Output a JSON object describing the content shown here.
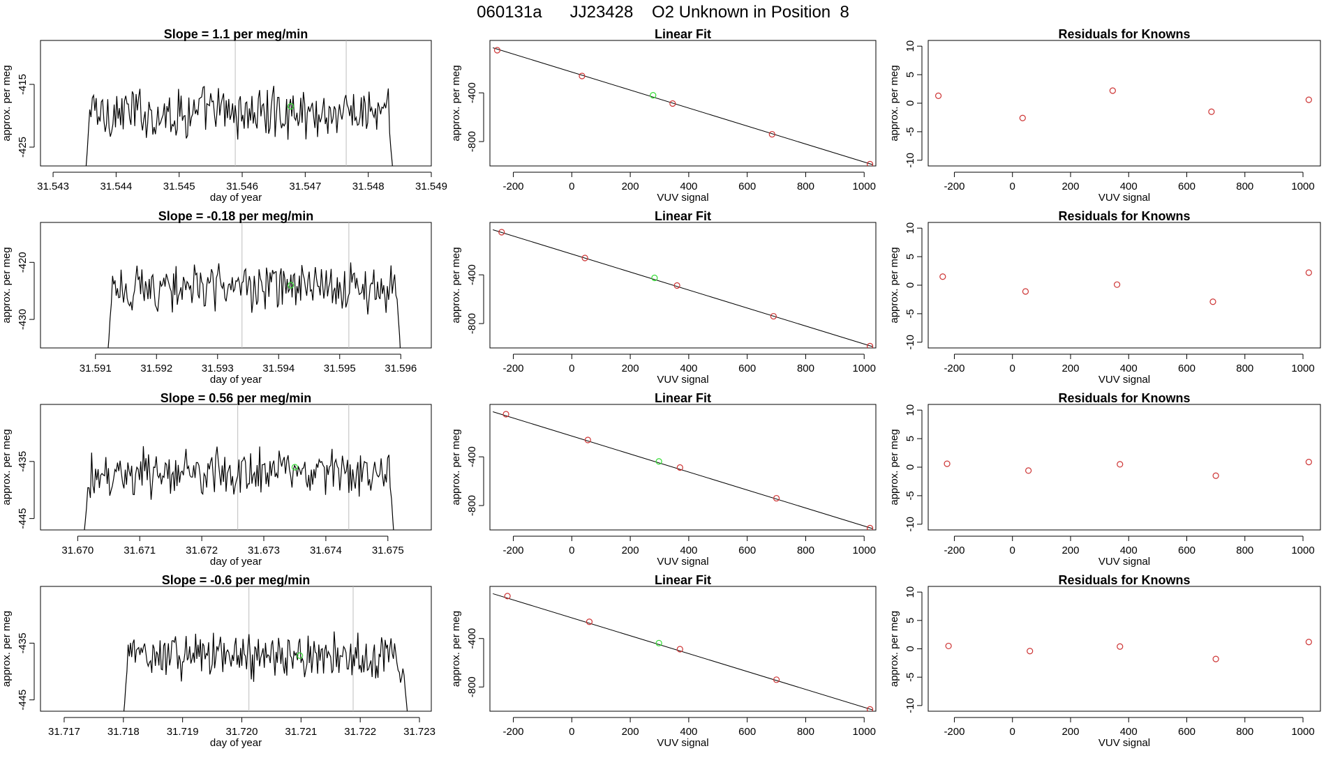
{
  "page": {
    "title": "060131a      JJ23428    O2 Unknown in Position  8"
  },
  "colors": {
    "line": "#000000",
    "known_point": "#cd3333",
    "unknown_point": "#33dd33",
    "marker_line": "#bdbdbd",
    "frame": "#000000"
  },
  "chart_data": [
    {
      "type": "line",
      "row": 1,
      "title": "Slope =  1.1  per meg/min",
      "xlabel": "day of year",
      "ylabel": "approx. per meg",
      "xlim": [
        31.5428,
        31.549
      ],
      "ylim": [
        -428,
        -408
      ],
      "xticks": [
        "31.543",
        "31.544",
        "31.545",
        "31.546",
        "31.547",
        "31.548",
        "31.549"
      ],
      "xtick_values": [
        31.543,
        31.544,
        31.545,
        31.546,
        31.547,
        31.548,
        31.549
      ],
      "yticks": [
        "-415",
        "-425"
      ],
      "ytick_values": [
        -415,
        -425
      ],
      "x_start": 31.5435,
      "x_end": 31.5484,
      "vlines": [
        31.54589,
        31.54765
      ],
      "base_level": -419.5,
      "amplitude": 3.2,
      "edge_low": -431,
      "unknown_point": {
        "x": 31.54677,
        "y": -418.5
      }
    },
    {
      "type": "scatter",
      "row": 1,
      "title": "Linear Fit",
      "xlabel": "VUV signal",
      "ylabel": "approx. per meg",
      "xlim": [
        -280,
        1040
      ],
      "ylim": [
        -1000,
        30
      ],
      "xticks": [
        "-200",
        "0",
        "200",
        "400",
        "600",
        "800",
        "1000"
      ],
      "xtick_values": [
        -200,
        0,
        200,
        400,
        600,
        800,
        1000
      ],
      "yticks": [
        "-400",
        "-800"
      ],
      "ytick_values": [
        -400,
        -800
      ],
      "fit_line": {
        "x": [
          -270,
          1030
        ],
        "y": [
          -30,
          -990
        ]
      },
      "knowns": {
        "x": [
          -255,
          35,
          345,
          685,
          1020
        ],
        "y": [
          -50,
          -262,
          -488,
          -740,
          -985
        ]
      },
      "unknown": {
        "x": 278,
        "y": -420
      }
    },
    {
      "type": "scatter",
      "row": 1,
      "title": "Residuals for Knowns",
      "xlabel": "VUV signal",
      "ylabel": "approx. per meg",
      "xlim": [
        -290,
        1060
      ],
      "ylim": [
        -11,
        11
      ],
      "xticks": [
        "-200",
        "0",
        "200",
        "400",
        "600",
        "800",
        "1000"
      ],
      "xtick_values": [
        -200,
        0,
        200,
        400,
        600,
        800,
        1000
      ],
      "yticks": [
        "10",
        "5",
        "0",
        "-5",
        "-10"
      ],
      "ytick_values": [
        10,
        5,
        0,
        -5,
        -10
      ],
      "x": [
        -255,
        35,
        345,
        685,
        1020
      ],
      "y": [
        1.3,
        -2.6,
        2.2,
        -1.5,
        0.6
      ]
    },
    {
      "type": "line",
      "row": 2,
      "title": "Slope =  -0.18  per meg/min",
      "xlabel": "day of year",
      "ylabel": "approx. per meg",
      "xlim": [
        31.5901,
        31.5965
      ],
      "ylim": [
        -435,
        -413
      ],
      "xticks": [
        "31.591",
        "31.592",
        "31.593",
        "31.594",
        "31.595",
        "31.596"
      ],
      "xtick_values": [
        31.591,
        31.592,
        31.593,
        31.594,
        31.595,
        31.596
      ],
      "yticks": [
        "-420",
        "-430"
      ],
      "ytick_values": [
        -420,
        -430
      ],
      "x_start": 31.5912,
      "x_end": 31.596,
      "vlines": [
        31.5934,
        31.59515
      ],
      "base_level": -424.5,
      "amplitude": 3.2,
      "edge_low": -436,
      "unknown_point": {
        "x": 31.5942,
        "y": -424.0
      }
    },
    {
      "type": "scatter",
      "row": 2,
      "title": "Linear Fit",
      "xlabel": "VUV signal",
      "ylabel": "approx. per meg",
      "xlim": [
        -280,
        1040
      ],
      "ylim": [
        -1000,
        30
      ],
      "xticks": [
        "-200",
        "0",
        "200",
        "400",
        "600",
        "800",
        "1000"
      ],
      "xtick_values": [
        -200,
        0,
        200,
        400,
        600,
        800,
        1000
      ],
      "yticks": [
        "-400",
        "-800"
      ],
      "ytick_values": [
        -400,
        -800
      ],
      "fit_line": {
        "x": [
          -270,
          1030
        ],
        "y": [
          -30,
          -990
        ]
      },
      "knowns": {
        "x": [
          -240,
          45,
          360,
          690,
          1020
        ],
        "y": [
          -50,
          -262,
          -488,
          -740,
          -985
        ]
      },
      "unknown": {
        "x": 283,
        "y": -425
      }
    },
    {
      "type": "scatter",
      "row": 2,
      "title": "Residuals for Knowns",
      "xlabel": "VUV signal",
      "ylabel": "approx. per meg",
      "xlim": [
        -290,
        1060
      ],
      "ylim": [
        -11,
        11
      ],
      "xticks": [
        "-200",
        "0",
        "200",
        "400",
        "600",
        "800",
        "1000"
      ],
      "xtick_values": [
        -200,
        0,
        200,
        400,
        600,
        800,
        1000
      ],
      "yticks": [
        "10",
        "5",
        "0",
        "-5",
        "-10"
      ],
      "ytick_values": [
        10,
        5,
        0,
        -5,
        -10
      ],
      "x": [
        -240,
        45,
        360,
        690,
        1020
      ],
      "y": [
        1.5,
        -1.1,
        0.1,
        -2.9,
        2.2
      ]
    },
    {
      "type": "line",
      "row": 3,
      "title": "Slope =  0.56  per meg/min",
      "xlabel": "day of year",
      "ylabel": "approx. per meg",
      "xlim": [
        31.6694,
        31.6757
      ],
      "ylim": [
        -447,
        -425
      ],
      "xticks": [
        "31.670",
        "31.671",
        "31.672",
        "31.673",
        "31.674",
        "31.675"
      ],
      "xtick_values": [
        31.67,
        31.671,
        31.672,
        31.673,
        31.674,
        31.675
      ],
      "yticks": [
        "-435",
        "-445"
      ],
      "ytick_values": [
        -435,
        -445
      ],
      "x_start": 31.6701,
      "x_end": 31.6751,
      "vlines": [
        31.67258,
        31.67437
      ],
      "base_level": -437.0,
      "amplitude": 3.2,
      "edge_low": -448,
      "unknown_point": {
        "x": 31.6735,
        "y": -436.0
      }
    },
    {
      "type": "scatter",
      "row": 3,
      "title": "Linear Fit",
      "xlabel": "VUV signal",
      "ylabel": "approx. per meg",
      "xlim": [
        -280,
        1040
      ],
      "ylim": [
        -1000,
        30
      ],
      "xticks": [
        "-200",
        "0",
        "200",
        "400",
        "600",
        "800",
        "1000"
      ],
      "xtick_values": [
        -200,
        0,
        200,
        400,
        600,
        800,
        1000
      ],
      "yticks": [
        "-400",
        "-800"
      ],
      "ytick_values": [
        -400,
        -800
      ],
      "fit_line": {
        "x": [
          -270,
          1030
        ],
        "y": [
          -30,
          -990
        ]
      },
      "knowns": {
        "x": [
          -225,
          55,
          370,
          700,
          1020
        ],
        "y": [
          -50,
          -262,
          -488,
          -740,
          -985
        ]
      },
      "unknown": {
        "x": 298,
        "y": -438
      }
    },
    {
      "type": "scatter",
      "row": 3,
      "title": "Residuals for Knowns",
      "xlabel": "VUV signal",
      "ylabel": "approx. per meg",
      "xlim": [
        -290,
        1060
      ],
      "ylim": [
        -11,
        11
      ],
      "xticks": [
        "-200",
        "0",
        "200",
        "400",
        "600",
        "800",
        "1000"
      ],
      "xtick_values": [
        -200,
        0,
        200,
        400,
        600,
        800,
        1000
      ],
      "yticks": [
        "10",
        "5",
        "0",
        "-5",
        "-10"
      ],
      "ytick_values": [
        10,
        5,
        0,
        -5,
        -10
      ],
      "x": [
        -225,
        55,
        370,
        700,
        1020
      ],
      "y": [
        0.6,
        -0.6,
        0.5,
        -1.5,
        0.9
      ]
    },
    {
      "type": "line",
      "row": 4,
      "title": "Slope =  -0.6  per meg/min",
      "xlabel": "day of year",
      "ylabel": "approx. per meg",
      "xlim": [
        31.7166,
        31.7232
      ],
      "ylim": [
        -447,
        -425
      ],
      "xticks": [
        "31.717",
        "31.718",
        "31.719",
        "31.720",
        "31.721",
        "31.722",
        "31.723"
      ],
      "xtick_values": [
        31.717,
        31.718,
        31.719,
        31.72,
        31.721,
        31.722,
        31.723
      ],
      "yticks": [
        "-435",
        "-445"
      ],
      "ytick_values": [
        -435,
        -445
      ],
      "x_start": 31.718,
      "x_end": 31.7228,
      "vlines": [
        31.72012,
        31.72188
      ],
      "base_level": -437.5,
      "amplitude": 3.2,
      "edge_low": -448,
      "unknown_point": {
        "x": 31.72098,
        "y": -437.2
      }
    },
    {
      "type": "scatter",
      "row": 4,
      "title": "Linear Fit",
      "xlabel": "VUV signal",
      "ylabel": "approx. per meg",
      "xlim": [
        -280,
        1040
      ],
      "ylim": [
        -1000,
        30
      ],
      "xticks": [
        "-200",
        "0",
        "200",
        "400",
        "600",
        "800",
        "1000"
      ],
      "xtick_values": [
        -200,
        0,
        200,
        400,
        600,
        800,
        1000
      ],
      "yticks": [
        "-400",
        "-800"
      ],
      "ytick_values": [
        -400,
        -800
      ],
      "fit_line": {
        "x": [
          -270,
          1030
        ],
        "y": [
          -30,
          -990
        ]
      },
      "knowns": {
        "x": [
          -220,
          60,
          370,
          700,
          1020
        ],
        "y": [
          -50,
          -262,
          -488,
          -740,
          -985
        ]
      },
      "unknown": {
        "x": 298,
        "y": -438
      }
    },
    {
      "type": "scatter",
      "row": 4,
      "title": "Residuals for Knowns",
      "xlabel": "VUV signal",
      "ylabel": "approx. per meg",
      "xlim": [
        -290,
        1060
      ],
      "ylim": [
        -11,
        11
      ],
      "xticks": [
        "-200",
        "0",
        "200",
        "400",
        "600",
        "800",
        "1000"
      ],
      "xtick_values": [
        -200,
        0,
        200,
        400,
        600,
        800,
        1000
      ],
      "yticks": [
        "10",
        "5",
        "0",
        "-5",
        "-10"
      ],
      "ytick_values": [
        10,
        5,
        0,
        -5,
        -10
      ],
      "x": [
        -220,
        60,
        370,
        700,
        1020
      ],
      "y": [
        0.5,
        -0.4,
        0.4,
        -1.8,
        1.2
      ]
    }
  ]
}
